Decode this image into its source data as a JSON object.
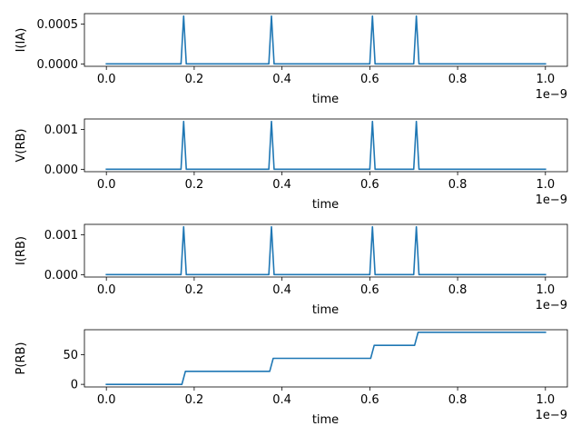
{
  "chart_data": [
    {
      "type": "line",
      "xlabel": "time",
      "ylabel": "I(IA)",
      "x_offset_label": "1e−9",
      "xlim": [
        -0.05,
        1.05
      ],
      "ylim": [
        -3e-05,
        0.00063
      ],
      "xticks": [
        0.0,
        0.2,
        0.4,
        0.6,
        0.8,
        1.0
      ],
      "xtick_labels": [
        "0.0",
        "0.2",
        "0.4",
        "0.6",
        "0.8",
        "1.0"
      ],
      "yticks": [
        0.0,
        0.0005
      ],
      "ytick_labels": [
        "0.0000",
        "0.0005"
      ],
      "color": "#1f77b4",
      "x": [
        0.0,
        0.17,
        0.176,
        0.182,
        0.37,
        0.376,
        0.382,
        0.6,
        0.606,
        0.612,
        0.7,
        0.706,
        0.712,
        1.0
      ],
      "y": [
        0.0,
        0.0,
        0.0006,
        0.0,
        0.0,
        0.0006,
        0.0,
        0.0,
        0.0006,
        0.0,
        0.0,
        0.0006,
        0.0,
        0.0
      ]
    },
    {
      "type": "line",
      "xlabel": "time",
      "ylabel": "V(RB)",
      "x_offset_label": "1e−9",
      "xlim": [
        -0.05,
        1.05
      ],
      "ylim": [
        -6e-05,
        0.00126
      ],
      "xticks": [
        0.0,
        0.2,
        0.4,
        0.6,
        0.8,
        1.0
      ],
      "xtick_labels": [
        "0.0",
        "0.2",
        "0.4",
        "0.6",
        "0.8",
        "1.0"
      ],
      "yticks": [
        0.0,
        0.001
      ],
      "ytick_labels": [
        "0.000",
        "0.001"
      ],
      "color": "#1f77b4",
      "x": [
        0.0,
        0.17,
        0.176,
        0.182,
        0.37,
        0.376,
        0.382,
        0.6,
        0.606,
        0.612,
        0.7,
        0.706,
        0.712,
        1.0
      ],
      "y": [
        0.0,
        0.0,
        0.0012,
        0.0,
        0.0,
        0.0012,
        0.0,
        0.0,
        0.0012,
        0.0,
        0.0,
        0.0012,
        0.0,
        0.0
      ]
    },
    {
      "type": "line",
      "xlabel": "time",
      "ylabel": "I(RB)",
      "x_offset_label": "1e−9",
      "xlim": [
        -0.05,
        1.05
      ],
      "ylim": [
        -6e-05,
        0.00126
      ],
      "xticks": [
        0.0,
        0.2,
        0.4,
        0.6,
        0.8,
        1.0
      ],
      "xtick_labels": [
        "0.0",
        "0.2",
        "0.4",
        "0.6",
        "0.8",
        "1.0"
      ],
      "yticks": [
        0.0,
        0.001
      ],
      "ytick_labels": [
        "0.000",
        "0.001"
      ],
      "color": "#1f77b4",
      "x": [
        0.0,
        0.17,
        0.176,
        0.182,
        0.37,
        0.376,
        0.382,
        0.6,
        0.606,
        0.612,
        0.7,
        0.706,
        0.712,
        1.0
      ],
      "y": [
        0.0,
        0.0,
        0.0012,
        0.0,
        0.0,
        0.0012,
        0.0,
        0.0,
        0.0012,
        0.0,
        0.0,
        0.0012,
        0.0,
        0.0
      ]
    },
    {
      "type": "line",
      "xlabel": "time",
      "ylabel": "P(RB)",
      "x_offset_label": "1e−9",
      "xlim": [
        -0.05,
        1.05
      ],
      "ylim": [
        -4.4,
        92.4
      ],
      "xticks": [
        0.0,
        0.2,
        0.4,
        0.6,
        0.8,
        1.0
      ],
      "xtick_labels": [
        "0.0",
        "0.2",
        "0.4",
        "0.6",
        "0.8",
        "1.0"
      ],
      "yticks": [
        0,
        50
      ],
      "ytick_labels": [
        "0",
        "50"
      ],
      "color": "#1f77b4",
      "x": [
        0.0,
        0.172,
        0.176,
        0.18,
        0.372,
        0.376,
        0.38,
        0.602,
        0.606,
        0.61,
        0.702,
        0.706,
        0.71,
        1.0
      ],
      "y": [
        0.0,
        0.0,
        11.0,
        22.0,
        22.0,
        33.0,
        44.0,
        44.0,
        55.0,
        66.0,
        66.0,
        77.0,
        88.0,
        88.0
      ]
    }
  ]
}
